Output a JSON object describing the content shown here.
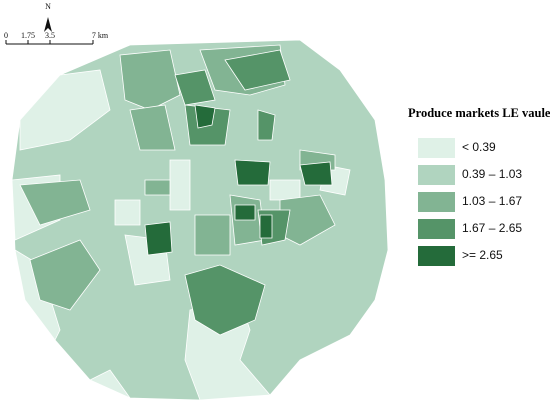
{
  "north_label": "N",
  "scale_bar": {
    "labels": [
      "0",
      "1.75",
      "3.5",
      "7 km"
    ]
  },
  "legend": {
    "title": "Produce markets LE vaule",
    "items": [
      {
        "label": "< 0.39",
        "color": "#dff1e7"
      },
      {
        "label": "0.39 – 1.03",
        "color": "#b0d4bf"
      },
      {
        "label": "1.03 – 1.67",
        "color": "#82b493"
      },
      {
        "label": "1.67 – 2.65",
        "color": "#559468"
      },
      {
        "label": ">= 2.65",
        "color": "#246b3a"
      }
    ]
  }
}
